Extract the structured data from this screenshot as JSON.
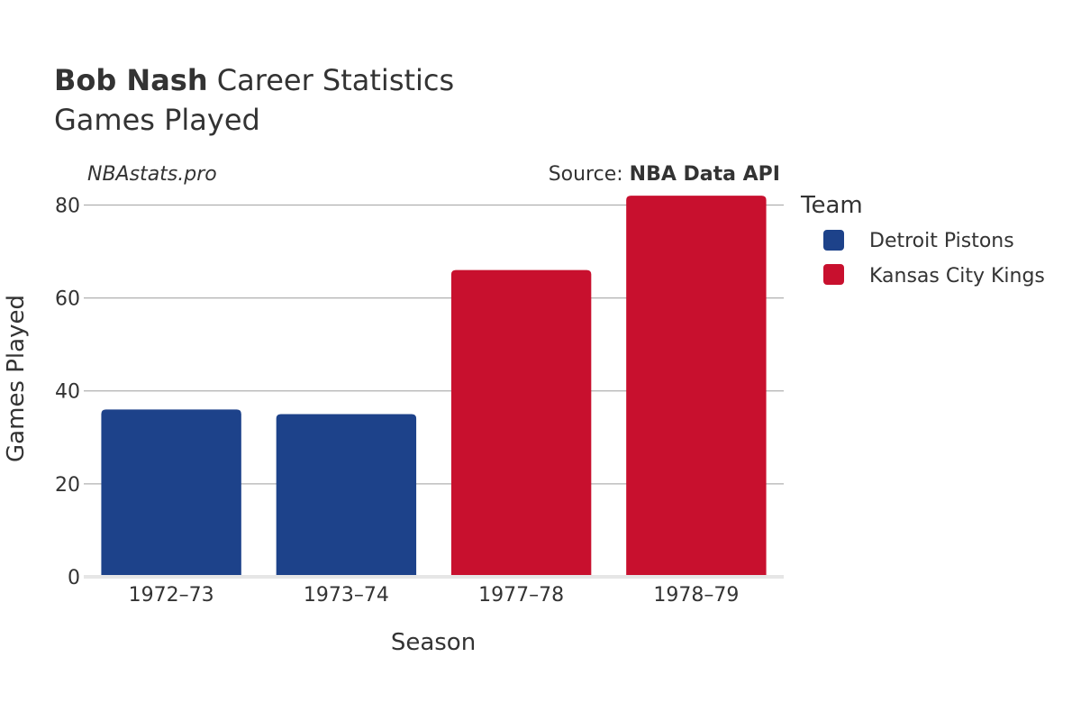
{
  "title": {
    "player": "Bob Nash",
    "rest": " Career Statistics",
    "subtitle": "Games Played"
  },
  "credit": {
    "site": "NBAstats.pro",
    "source_prefix": "Source: ",
    "source_name": "NBA Data API"
  },
  "legend": {
    "title": "Team",
    "items": [
      {
        "label": "Detroit Pistons",
        "color": "#1d428a"
      },
      {
        "label": "Kansas City Kings",
        "color": "#c8102e"
      }
    ]
  },
  "chart_data": {
    "type": "bar",
    "title": "Bob Nash Career Statistics",
    "subtitle": "Games Played",
    "xlabel": "Season",
    "ylabel": "Games Played",
    "categories": [
      "1972–73",
      "1973–74",
      "1977–78",
      "1978–79"
    ],
    "values": [
      36,
      35,
      66,
      82
    ],
    "teams": [
      "Detroit Pistons",
      "Detroit Pistons",
      "Kansas City Kings",
      "Kansas City Kings"
    ],
    "colors": [
      "#1d428a",
      "#1d428a",
      "#c8102e",
      "#c8102e"
    ],
    "yticks": [
      0,
      20,
      40,
      60,
      80
    ],
    "ylim": [
      0,
      86.3
    ],
    "grid": true,
    "legend_position": "right"
  }
}
